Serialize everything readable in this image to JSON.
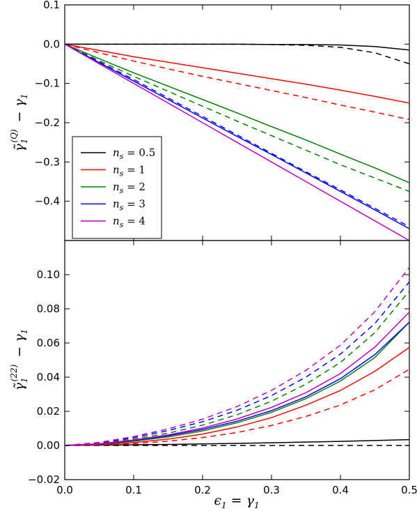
{
  "chart_data": [
    {
      "type": "line",
      "panel": "top",
      "ylabel": "γ̃₁^(Q) − γ₁",
      "xlim": [
        0.0,
        0.5
      ],
      "ylim": [
        -0.5,
        0.1
      ],
      "x_ticks": [
        "0.0",
        "0.1",
        "0.2",
        "0.3",
        "0.4",
        "0.5"
      ],
      "y_ticks": [
        "0.1",
        "0.0",
        "−0.1",
        "−0.2",
        "−0.3",
        "−0.4"
      ],
      "y_tick_values": [
        0.1,
        0.0,
        -0.1,
        -0.2,
        -0.3,
        -0.4
      ],
      "legend_placement": "lower-left",
      "x": [
        0.0,
        0.05,
        0.1,
        0.15,
        0.2,
        0.25,
        0.3,
        0.35,
        0.4,
        0.45,
        0.5
      ],
      "series": [
        {
          "name": "n_s = 0.5",
          "color": "#000000",
          "style": "solid",
          "values": [
            0,
            0,
            0,
            0,
            0,
            0,
            -0.001,
            -0.001,
            -0.002,
            -0.006,
            -0.015
          ]
        },
        {
          "name": "n_s = 0.5",
          "color": "#000000",
          "style": "dashed",
          "values": [
            0,
            0,
            0,
            0,
            0,
            0,
            -0.001,
            -0.003,
            -0.008,
            -0.022,
            -0.05
          ]
        },
        {
          "name": "n_s = 1",
          "color": "#ff0000",
          "style": "solid",
          "values": [
            0,
            -0.016,
            -0.032,
            -0.046,
            -0.06,
            -0.074,
            -0.088,
            -0.102,
            -0.117,
            -0.133,
            -0.15
          ]
        },
        {
          "name": "n_s = 1",
          "color": "#ff0000",
          "style": "dashed",
          "values": [
            0,
            -0.022,
            -0.043,
            -0.063,
            -0.082,
            -0.1,
            -0.118,
            -0.136,
            -0.155,
            -0.173,
            -0.192
          ]
        },
        {
          "name": "n_s = 2",
          "color": "#008000",
          "style": "solid",
          "values": [
            0,
            -0.037,
            -0.073,
            -0.107,
            -0.141,
            -0.175,
            -0.21,
            -0.244,
            -0.28,
            -0.315,
            -0.353
          ]
        },
        {
          "name": "n_s = 2",
          "color": "#008000",
          "style": "dashed",
          "values": [
            0,
            -0.042,
            -0.082,
            -0.12,
            -0.158,
            -0.196,
            -0.233,
            -0.27,
            -0.307,
            -0.341,
            -0.375
          ]
        },
        {
          "name": "n_s = 3",
          "color": "#0000ff",
          "style": "solid",
          "values": [
            0,
            -0.047,
            -0.094,
            -0.141,
            -0.188,
            -0.235,
            -0.281,
            -0.328,
            -0.375,
            -0.422,
            -0.47
          ]
        },
        {
          "name": "n_s = 3",
          "color": "#0000ff",
          "style": "dashed",
          "values": [
            0,
            -0.045,
            -0.09,
            -0.137,
            -0.184,
            -0.231,
            -0.278,
            -0.325,
            -0.371,
            -0.418,
            -0.465
          ]
        },
        {
          "name": "n_s = 4",
          "color": "#bf00bf",
          "style": "solid",
          "values": [
            0,
            -0.05,
            -0.1,
            -0.15,
            -0.2,
            -0.25,
            -0.3,
            -0.35,
            -0.4,
            -0.45,
            -0.5
          ]
        }
      ],
      "legend": [
        {
          "label": "n_s = 0.5",
          "color": "#000000"
        },
        {
          "label": "n_s = 1",
          "color": "#ff0000"
        },
        {
          "label": "n_s = 2",
          "color": "#008000"
        },
        {
          "label": "n_s = 3",
          "color": "#0000ff"
        },
        {
          "label": "n_s = 4",
          "color": "#bf00bf"
        }
      ]
    },
    {
      "type": "line",
      "panel": "bottom",
      "xlabel": "ε₁ = γ₁",
      "ylabel": "γ̃₁^(22) − γ₁",
      "xlim": [
        0.0,
        0.5
      ],
      "ylim": [
        -0.02,
        0.12
      ],
      "x_ticks": [
        "0.0",
        "0.1",
        "0.2",
        "0.3",
        "0.4",
        "0.5"
      ],
      "x_tick_values": [
        0.0,
        0.1,
        0.2,
        0.3,
        0.4,
        0.5
      ],
      "y_ticks": [
        "0.10",
        "0.08",
        "0.06",
        "0.04",
        "0.02",
        "0.00",
        "−0.02"
      ],
      "y_tick_values": [
        0.1,
        0.08,
        0.06,
        0.04,
        0.02,
        0.0,
        -0.02
      ],
      "x": [
        0.0,
        0.05,
        0.1,
        0.15,
        0.2,
        0.25,
        0.3,
        0.35,
        0.4,
        0.45,
        0.5
      ],
      "series": [
        {
          "name": "n_s = 0.5",
          "color": "#000000",
          "style": "solid",
          "values": [
            0,
            0.0002,
            0.0004,
            0.0006,
            0.0009,
            0.0012,
            0.0016,
            0.002,
            0.0024,
            0.0029,
            0.0034
          ]
        },
        {
          "name": "n_s = 0.5",
          "color": "#000000",
          "style": "dashed",
          "values": [
            0,
            0,
            0,
            0,
            0,
            0,
            0,
            0,
            0,
            0,
            0
          ]
        },
        {
          "name": "n_s = 1",
          "color": "#ff0000",
          "style": "solid",
          "values": [
            0,
            0.0005,
            0.0017,
            0.0037,
            0.0067,
            0.0108,
            0.0163,
            0.0236,
            0.0322,
            0.0434,
            0.0574
          ]
        },
        {
          "name": "n_s = 1",
          "color": "#ff0000",
          "style": "dashed",
          "values": [
            0,
            0.0003,
            0.0011,
            0.0025,
            0.0046,
            0.0076,
            0.0117,
            0.017,
            0.0237,
            0.0326,
            0.0446
          ]
        },
        {
          "name": "n_s = 2",
          "color": "#008000",
          "style": "solid",
          "values": [
            0,
            0.0008,
            0.0025,
            0.005,
            0.0085,
            0.0133,
            0.0194,
            0.0274,
            0.0377,
            0.0515,
            0.0722
          ]
        },
        {
          "name": "n_s = 2",
          "color": "#008000",
          "style": "dashed",
          "values": [
            0,
            0.0012,
            0.0038,
            0.0072,
            0.0119,
            0.018,
            0.0259,
            0.0359,
            0.0486,
            0.0661,
            0.0905
          ]
        },
        {
          "name": "n_s = 3",
          "color": "#0000ff",
          "style": "solid",
          "values": [
            0,
            0.0009,
            0.0029,
            0.0057,
            0.0094,
            0.0142,
            0.0204,
            0.0285,
            0.0391,
            0.0532,
            0.0722
          ]
        },
        {
          "name": "n_s = 3",
          "color": "#0000ff",
          "style": "dashed",
          "values": [
            0,
            0.0015,
            0.0046,
            0.0087,
            0.0139,
            0.0206,
            0.0292,
            0.04,
            0.0535,
            0.0714,
            0.0958
          ]
        },
        {
          "name": "n_s = 4",
          "color": "#bf00bf",
          "style": "solid",
          "values": [
            0,
            0.001,
            0.0032,
            0.0062,
            0.0102,
            0.0155,
            0.0223,
            0.0309,
            0.0421,
            0.0576,
            0.0781
          ]
        },
        {
          "name": "n_s = 4",
          "color": "#bf00bf",
          "style": "dashed",
          "values": [
            0,
            0.0018,
            0.0052,
            0.0097,
            0.0154,
            0.0228,
            0.0322,
            0.044,
            0.0587,
            0.0783,
            0.1043
          ]
        }
      ]
    }
  ]
}
